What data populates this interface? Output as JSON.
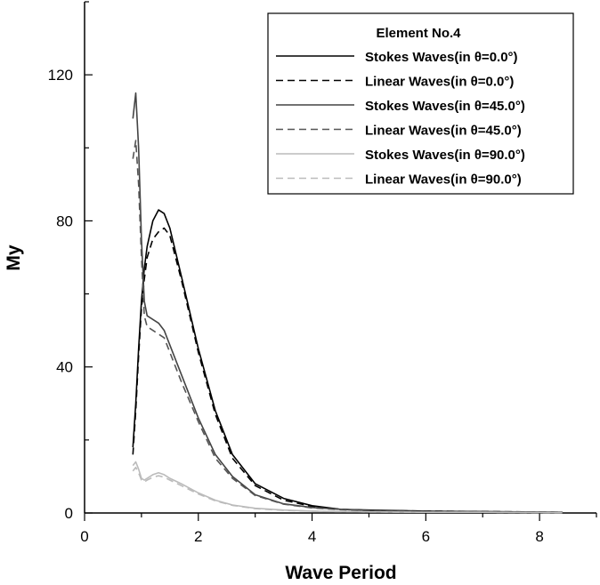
{
  "chart_data": {
    "type": "line",
    "xlabel": "Wave Period",
    "ylabel": "My",
    "xlim": [
      0,
      9
    ],
    "ylim": [
      0,
      140
    ],
    "xticks": [
      0,
      2,
      4,
      6,
      8
    ],
    "yticks": [
      0,
      40,
      80,
      120
    ],
    "grid": false,
    "legend": {
      "placement": "top-right",
      "title": "Element No.4"
    },
    "series": [
      {
        "name": "Stokes Waves(in θ=0.0°)",
        "color": "#000000",
        "dash": "solid",
        "x": [
          0.85,
          0.9,
          0.95,
          1.0,
          1.05,
          1.1,
          1.2,
          1.3,
          1.4,
          1.5,
          1.7,
          2.0,
          2.3,
          2.6,
          3.0,
          3.5,
          4.0,
          4.5,
          5.0,
          6.0,
          7.0,
          8.4
        ],
        "y": [
          18,
          30,
          45,
          58,
          67,
          73,
          80,
          83,
          82,
          78,
          65,
          45,
          28,
          16,
          8,
          4,
          2,
          1,
          0.8,
          0.5,
          0.4,
          0.2
        ]
      },
      {
        "name": "Linear Waves(in θ=0.0°)",
        "color": "#000000",
        "dash": "dashed",
        "x": [
          0.85,
          0.9,
          0.95,
          1.0,
          1.05,
          1.1,
          1.2,
          1.3,
          1.4,
          1.5,
          1.7,
          2.0,
          2.3,
          2.6,
          3.0,
          3.5,
          4.0,
          4.5,
          5.0,
          6.0,
          7.0,
          8.4
        ],
        "y": [
          16,
          28,
          43,
          56,
          64,
          70,
          75,
          77,
          78,
          76,
          64,
          44,
          27,
          15,
          7.5,
          3.5,
          1.8,
          1,
          0.7,
          0.5,
          0.4,
          0.2
        ]
      },
      {
        "name": "Stokes Waves(in θ=45.0°)",
        "color": "#444444",
        "dash": "solid",
        "x": [
          0.85,
          0.9,
          0.95,
          1.0,
          1.05,
          1.1,
          1.2,
          1.3,
          1.4,
          1.5,
          1.7,
          2.0,
          2.3,
          2.6,
          3.0,
          3.5,
          4.0,
          4.5,
          5.0,
          6.0,
          7.0,
          8.4
        ],
        "y": [
          108,
          115,
          100,
          75,
          58,
          54,
          53,
          52,
          50,
          46,
          38,
          26,
          16,
          10,
          5,
          2.5,
          1.5,
          1,
          0.7,
          0.4,
          0.3,
          0.2
        ]
      },
      {
        "name": "Linear Waves(in θ=45.0°)",
        "color": "#555555",
        "dash": "dashed",
        "x": [
          0.85,
          0.9,
          0.95,
          1.0,
          1.05,
          1.1,
          1.2,
          1.3,
          1.4,
          1.5,
          1.7,
          2.0,
          2.3,
          2.6,
          3.0,
          3.5,
          4.0,
          4.5,
          5.0,
          6.0,
          7.0,
          8.4
        ],
        "y": [
          97,
          102,
          90,
          70,
          54,
          51,
          50,
          49,
          48,
          44,
          36,
          25,
          15,
          9.5,
          4.8,
          2.4,
          1.4,
          0.9,
          0.6,
          0.4,
          0.3,
          0.2
        ]
      },
      {
        "name": "Stokes Waves(in θ=90.0°)",
        "color": "#bbbbbb",
        "dash": "solid",
        "x": [
          0.85,
          0.9,
          0.95,
          1.0,
          1.05,
          1.1,
          1.2,
          1.3,
          1.4,
          1.5,
          1.7,
          2.0,
          2.3,
          2.6,
          3.0,
          3.5,
          4.0,
          4.5,
          5.0,
          6.0,
          7.0,
          8.4
        ],
        "y": [
          13,
          14,
          12,
          9.5,
          9,
          9.5,
          10.5,
          11,
          10.5,
          9.5,
          8,
          5.5,
          3.5,
          2.2,
          1.3,
          0.8,
          0.5,
          0.4,
          0.3,
          0.2,
          0.2,
          0.1
        ]
      },
      {
        "name": "Linear Waves(in θ=90.0°)",
        "color": "#bbbbbb",
        "dash": "dashed",
        "x": [
          0.85,
          0.9,
          0.95,
          1.0,
          1.05,
          1.1,
          1.2,
          1.3,
          1.4,
          1.5,
          1.7,
          2.0,
          2.3,
          2.6,
          3.0,
          3.5,
          4.0,
          4.5,
          5.0,
          6.0,
          7.0,
          8.4
        ],
        "y": [
          11.5,
          12.5,
          11,
          9,
          8.5,
          9,
          9.8,
          10.2,
          9.8,
          9,
          7.5,
          5.2,
          3.3,
          2.1,
          1.2,
          0.7,
          0.5,
          0.35,
          0.3,
          0.2,
          0.2,
          0.1
        ]
      }
    ]
  }
}
